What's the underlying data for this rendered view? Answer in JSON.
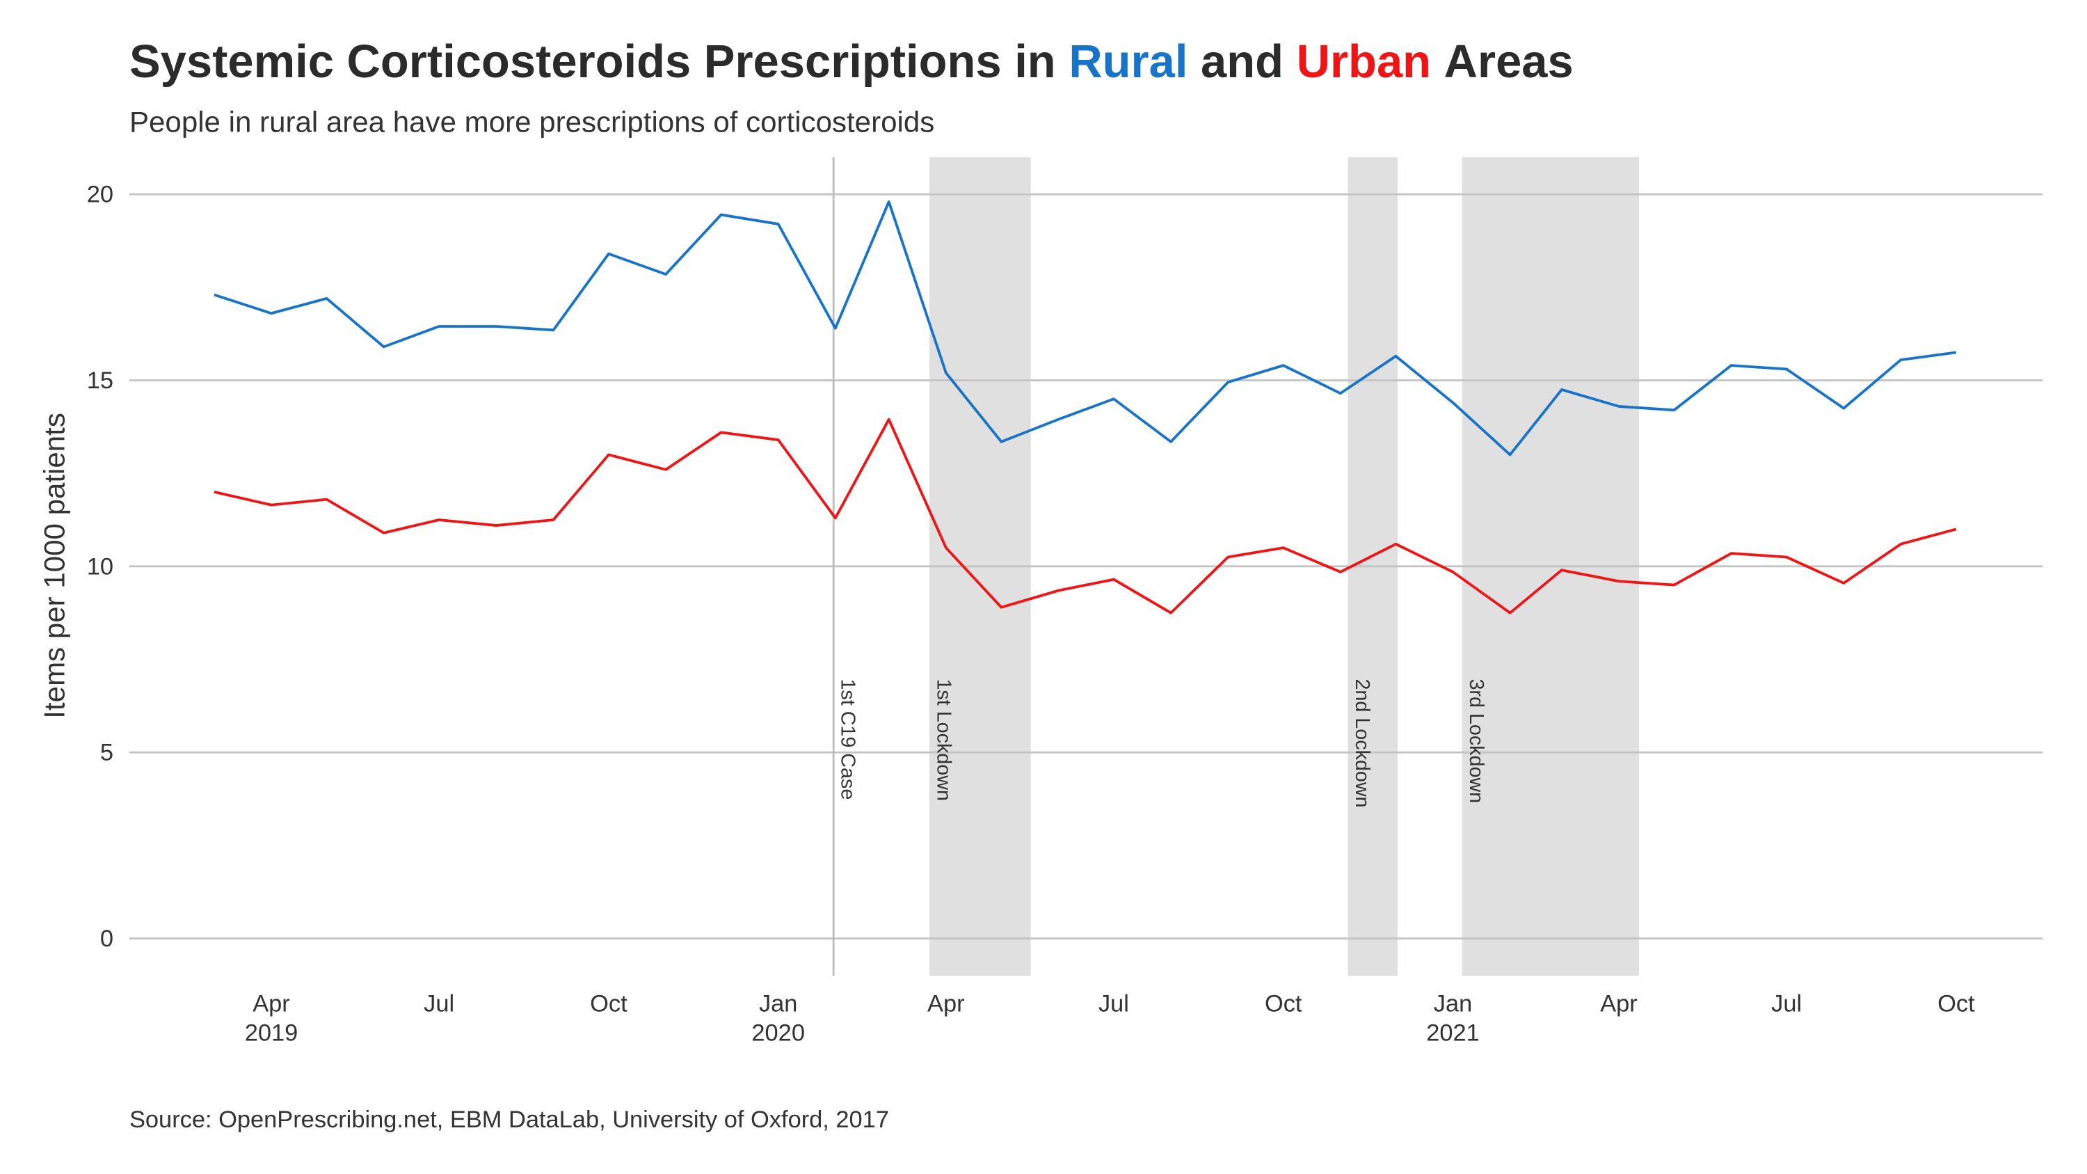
{
  "chart_data": {
    "type": "line",
    "title_parts": [
      "Systemic Corticosteroids Prescriptions in",
      "and",
      "Areas"
    ],
    "subtitle": "People in rural area have more prescriptions of corticosteroids",
    "y_label": "Items per 1000 patients",
    "source": "Source: OpenPrescribing.net, EBM DataLab, University of Oxford, 2017",
    "x": [
      "2019-03",
      "2019-04",
      "2019-05",
      "2019-06",
      "2019-07",
      "2019-08",
      "2019-09",
      "2019-10",
      "2019-11",
      "2019-12",
      "2020-01",
      "2020-02",
      "2020-03",
      "2020-04",
      "2020-05",
      "2020-06",
      "2020-07",
      "2020-08",
      "2020-09",
      "2020-10",
      "2020-11",
      "2020-12",
      "2021-01",
      "2021-02",
      "2021-03",
      "2021-04",
      "2021-05",
      "2021-06",
      "2021-07",
      "2021-08",
      "2021-09",
      "2021-10"
    ],
    "series": [
      {
        "name": "Rural",
        "color": "#1874c8",
        "values": [
          17.3,
          16.8,
          17.2,
          15.9,
          16.45,
          16.45,
          16.35,
          18.4,
          17.85,
          19.45,
          19.2,
          16.4,
          19.8,
          15.2,
          13.35,
          13.95,
          14.5,
          13.35,
          14.95,
          15.4,
          14.65,
          15.65,
          14.4,
          13.0,
          14.75,
          14.3,
          14.2,
          15.4,
          15.3,
          14.25,
          15.55,
          15.75
        ]
      },
      {
        "name": "Urban",
        "color": "#f01414",
        "values": [
          12.0,
          11.65,
          11.8,
          10.9,
          11.25,
          11.1,
          11.25,
          13.0,
          12.6,
          13.6,
          13.4,
          11.3,
          13.95,
          10.5,
          8.9,
          9.35,
          9.65,
          8.75,
          10.25,
          10.5,
          9.85,
          10.6,
          9.85,
          8.75,
          9.9,
          9.6,
          9.5,
          10.35,
          10.25,
          9.55,
          10.6,
          11.0
        ]
      }
    ],
    "xlim": [
      "2019-01-14",
      "2021-11-17"
    ],
    "xticks": [
      {
        "value": "2019-04-01",
        "label": [
          "Apr",
          "2019"
        ]
      },
      {
        "value": "2019-07-01",
        "label": [
          "Jul"
        ]
      },
      {
        "value": "2019-10-01",
        "label": [
          "Oct"
        ]
      },
      {
        "value": "2020-01-01",
        "label": [
          "Jan",
          "2020"
        ]
      },
      {
        "value": "2020-04-01",
        "label": [
          "Apr"
        ]
      },
      {
        "value": "2020-07-01",
        "label": [
          "Jul"
        ]
      },
      {
        "value": "2020-10-01",
        "label": [
          "Oct"
        ]
      },
      {
        "value": "2021-01-01",
        "label": [
          "Jan",
          "2021"
        ]
      },
      {
        "value": "2021-04-01",
        "label": [
          "Apr"
        ]
      },
      {
        "value": "2021-07-01",
        "label": [
          "Jul"
        ]
      },
      {
        "value": "2021-10-01",
        "label": [
          "Oct"
        ]
      }
    ],
    "ylim": [
      -1,
      21
    ],
    "yticks": [
      0,
      5,
      10,
      15,
      20
    ],
    "grid": true,
    "event_lines": [
      {
        "label": "1st C19 Case",
        "x": "2020-01-31"
      }
    ],
    "shaded": [
      {
        "label": "1st Lockdown",
        "start": "2020-03-23",
        "end": "2020-05-17"
      },
      {
        "label": "2nd Lockdown",
        "start": "2020-11-05",
        "end": "2020-12-02"
      },
      {
        "label": "3rd Lockdown",
        "start": "2021-01-06",
        "end": "2021-04-12"
      }
    ]
  }
}
